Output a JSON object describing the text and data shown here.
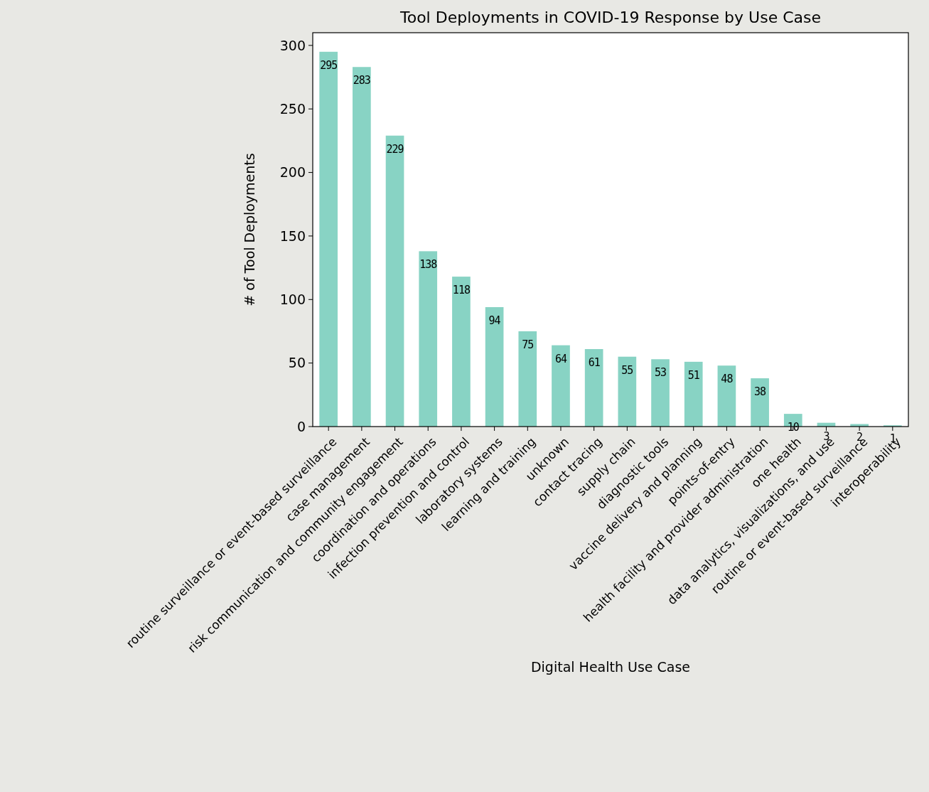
{
  "chart_data": {
    "type": "bar",
    "title": "Tool Deployments in COVID-19 Response by Use Case",
    "xlabel": "Digital Health Use Case",
    "ylabel": "# of Tool Deployments",
    "categories": [
      "routine surveillance or event-based surveillance",
      "case management",
      "risk communication and community engagement",
      "coordination and operations",
      "infection prevention and control",
      "laboratory systems",
      "learning and training",
      "unknown",
      "contact tracing",
      "supply chain",
      "diagnostic tools",
      "vaccine delivery and planning",
      "points-of-entry",
      "health facility and provider administration",
      "one health",
      "data analytics, visualizations, and use",
      "routine or event-based surveillance",
      "interoperability"
    ],
    "values": [
      295,
      283,
      229,
      138,
      118,
      94,
      75,
      64,
      61,
      55,
      53,
      51,
      48,
      38,
      10,
      3,
      2,
      1
    ],
    "color": "#88d3c4",
    "ylim": [
      0,
      310
    ],
    "yticks": [
      0,
      50,
      100,
      150,
      200,
      250,
      300
    ],
    "data_labels": true,
    "grid": false
  }
}
